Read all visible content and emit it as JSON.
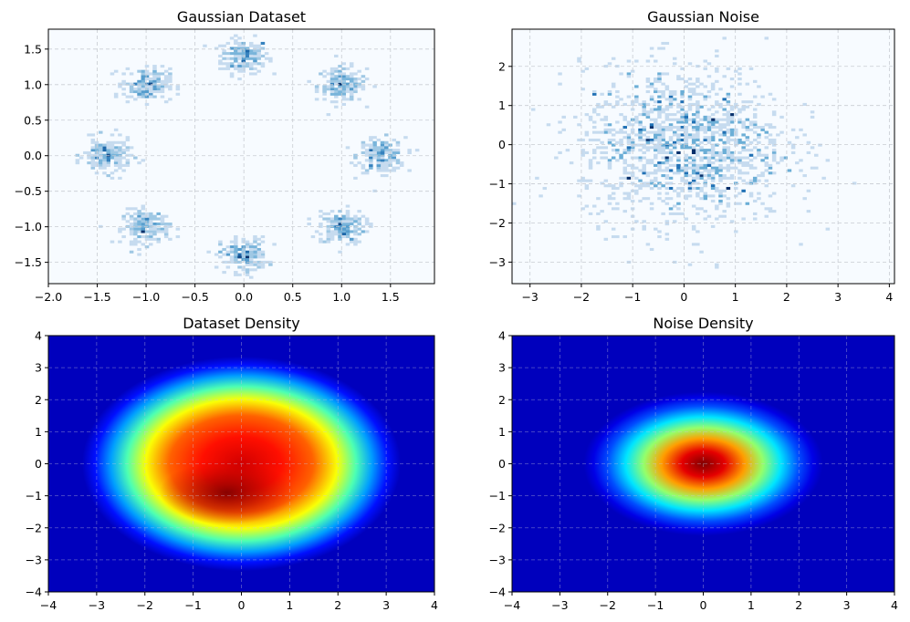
{
  "chart_data": [
    {
      "type": "heatmap",
      "title": "Gaussian Dataset",
      "xlabel": "",
      "ylabel": "",
      "xlim": [
        -2.0,
        1.95
      ],
      "ylim": [
        -1.8,
        1.78
      ],
      "xticks": [
        -2.0,
        -1.5,
        -1.0,
        -0.5,
        0.0,
        0.5,
        1.0,
        1.5
      ],
      "xtick_labels": [
        "−2.0",
        "−1.5",
        "−1.0",
        "−0.5",
        "0.0",
        "0.5",
        "1.0",
        "1.5"
      ],
      "yticks": [
        1.5,
        1.0,
        0.5,
        0.0,
        -0.5,
        -1.0,
        -1.5
      ],
      "ytick_labels": [
        "1.5",
        "1.0",
        "0.5",
        "0.0",
        "−0.5",
        "−1.0",
        "−1.5"
      ],
      "grid": true,
      "colormap": "Blues",
      "clusters": [
        {
          "x": 0.0,
          "y": 1.4
        },
        {
          "x": 1.0,
          "y": 1.0
        },
        {
          "x": 1.4,
          "y": 0.0
        },
        {
          "x": 1.0,
          "y": -1.0
        },
        {
          "x": 0.0,
          "y": -1.4
        },
        {
          "x": -1.0,
          "y": -1.0
        },
        {
          "x": -1.4,
          "y": 0.0
        },
        {
          "x": -1.0,
          "y": 1.0
        }
      ],
      "cluster_std": 0.12
    },
    {
      "type": "heatmap",
      "title": "Gaussian Noise",
      "xlabel": "",
      "ylabel": "",
      "xlim": [
        -3.35,
        4.1
      ],
      "ylim": [
        -3.55,
        2.95
      ],
      "xticks": [
        -3,
        -2,
        -1,
        0,
        1,
        2,
        3,
        4
      ],
      "xtick_labels": [
        "−3",
        "−2",
        "−1",
        "0",
        "1",
        "2",
        "3",
        "4"
      ],
      "yticks": [
        2,
        1,
        0,
        -1,
        -2,
        -3
      ],
      "ytick_labels": [
        "2",
        "1",
        "0",
        "−1",
        "−2",
        "−3"
      ],
      "grid": true,
      "colormap": "Blues",
      "distribution": {
        "mean": [
          0,
          0
        ],
        "std": 1.0
      }
    },
    {
      "type": "heatmap",
      "title": "Dataset Density",
      "xlabel": "",
      "ylabel": "",
      "xlim": [
        -4,
        4
      ],
      "ylim": [
        -4,
        4
      ],
      "xticks": [
        -4,
        -3,
        -2,
        -1,
        0,
        1,
        2,
        3,
        4
      ],
      "xtick_labels": [
        "−4",
        "−3",
        "−2",
        "−1",
        "0",
        "1",
        "2",
        "3",
        "4"
      ],
      "yticks": [
        4,
        3,
        2,
        1,
        0,
        -1,
        -2,
        -3,
        -4
      ],
      "ytick_labels": [
        "4",
        "3",
        "2",
        "1",
        "0",
        "−1",
        "−2",
        "−3",
        "−4"
      ],
      "grid": true,
      "colormap": "jet",
      "density_peak": {
        "x": -0.3,
        "y": -0.9
      }
    },
    {
      "type": "heatmap",
      "title": "Noise Density",
      "xlabel": "",
      "ylabel": "",
      "xlim": [
        -4,
        4
      ],
      "ylim": [
        -4,
        4
      ],
      "xticks": [
        -4,
        -3,
        -2,
        -1,
        0,
        1,
        2,
        3,
        4
      ],
      "xtick_labels": [
        "−4",
        "−3",
        "−2",
        "−1",
        "0",
        "1",
        "2",
        "3",
        "4"
      ],
      "yticks": [
        4,
        3,
        2,
        1,
        0,
        -1,
        -2,
        -3,
        -4
      ],
      "ytick_labels": [
        "4",
        "3",
        "2",
        "1",
        "0",
        "−1",
        "−2",
        "−3",
        "−4"
      ],
      "grid": true,
      "colormap": "jet",
      "density_peak": {
        "x": 0.0,
        "y": 0.0
      }
    }
  ]
}
